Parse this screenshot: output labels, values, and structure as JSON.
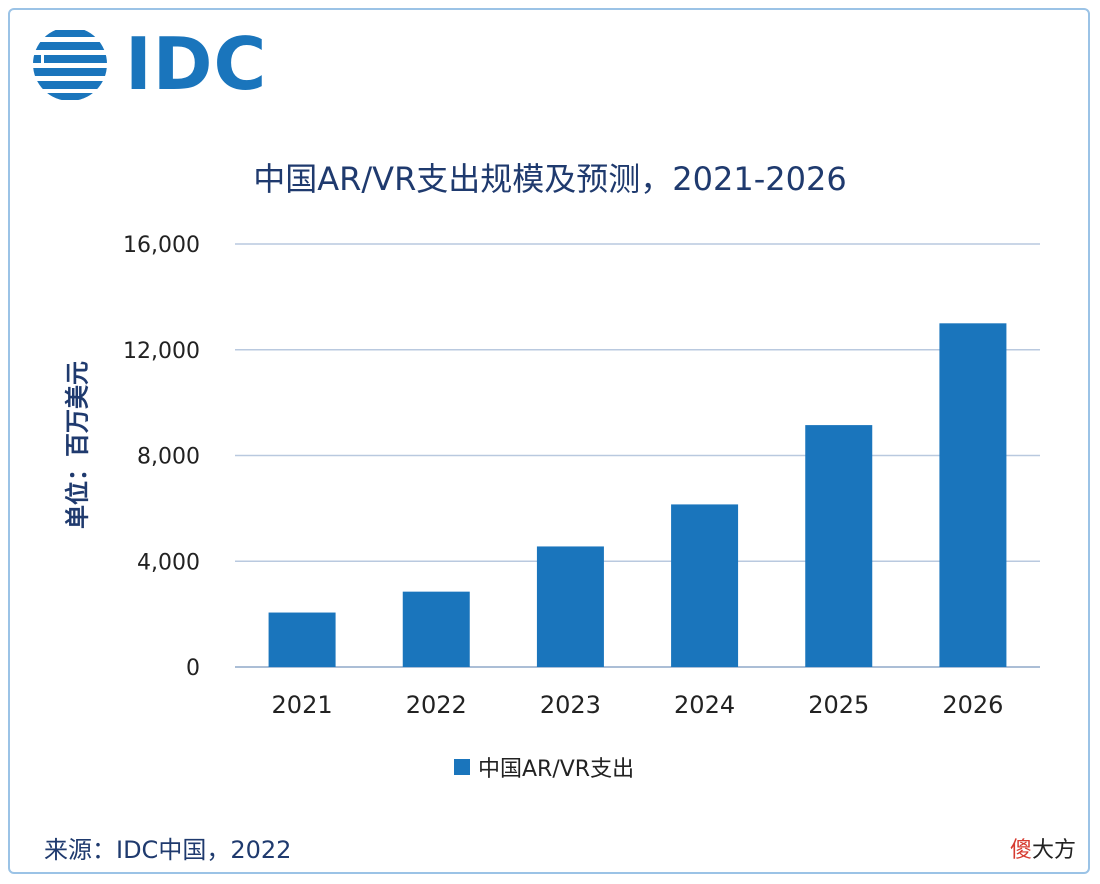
{
  "logo": {
    "text": "IDC",
    "color": "#1a75bc"
  },
  "chart_data": {
    "type": "bar",
    "title": "中国AR/VR支出规模及预测，2021-2026",
    "ylabel": "单位：百万美元",
    "xlabel": "",
    "categories": [
      "2021",
      "2022",
      "2023",
      "2024",
      "2025",
      "2026"
    ],
    "series": [
      {
        "name": "中国AR/VR支出",
        "values": [
          2060,
          2850,
          4560,
          6150,
          9150,
          13000
        ],
        "color": "#1a75bc"
      }
    ],
    "ylim": [
      0,
      16000
    ],
    "yticks": [
      0,
      4000,
      8000,
      12000,
      16000
    ],
    "ytick_labels": [
      "0",
      "4,000",
      "8,000",
      "12,000",
      "16,000"
    ],
    "grid": true,
    "legend_position": "bottom"
  },
  "source": "来源：IDC中国，2022",
  "watermark": {
    "first": "傻",
    "rest": "大方"
  }
}
